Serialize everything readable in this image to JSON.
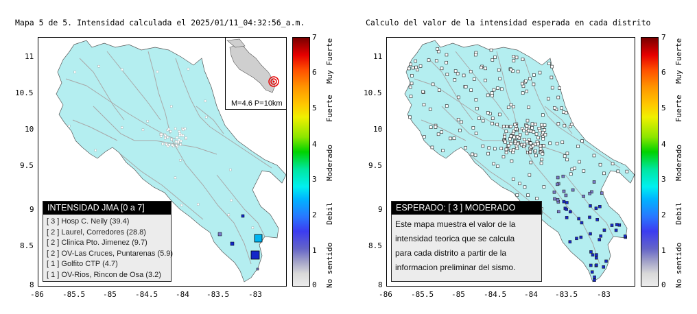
{
  "left": {
    "title": "Mapa 5 de 5. Intensidad calculada el 2025/01/11_04:32:56_a.m.",
    "x_ticks": [
      "-86",
      "-85.5",
      "-85",
      "-84.5",
      "-84",
      "-83.5",
      "-83"
    ],
    "y_ticks": [
      "11",
      "10.5",
      "10",
      "9.5",
      "9",
      "8.5",
      "8"
    ],
    "inset_caption": "M=4.6 P=10km",
    "legend_title": "INTENSIDAD JMA [0 a 7]",
    "legend_rows": [
      {
        "level": "[ 3 ]",
        "name": "Hosp C. Neily (39.4)"
      },
      {
        "level": "[ 2 ]",
        "name": "Laurel, Corredores (28.8)"
      },
      {
        "level": "[ 2 ]",
        "name": "Clinica Pto. Jimenez (9.7)"
      },
      {
        "level": "[ 2 ]",
        "name": "OV-Las Cruces, Puntarenas (5.9)"
      },
      {
        "level": "[ 1 ]",
        "name": "Golfito CTP (4.7)"
      },
      {
        "level": "[ 1 ]",
        "name": "OV-Rios, Rincon de Osa (3.2)"
      }
    ],
    "colorbar_numbers": [
      "7",
      "6",
      "5",
      "4",
      "3",
      "2",
      "1",
      "0"
    ],
    "colorbar_words": [
      "Muy Fuerte",
      "Fuerte",
      "Moderado",
      "Debil",
      "No sentido"
    ]
  },
  "right": {
    "title": "Calculo del valor de la intensidad esperada en cada distrito",
    "x_ticks": [
      "-86",
      "-85.5",
      "-85",
      "-84.5",
      "-84",
      "-83.5",
      "-83"
    ],
    "y_ticks": [
      "11",
      "10.5",
      "10",
      "9.5",
      "9",
      "8.5",
      "8"
    ],
    "box_title": "ESPERADO: [ 3 ] MODERADO",
    "box_lines": [
      "Este mapa muestra el valor de la",
      "intensidad teorica que se calcula",
      "para cada distrito a partir de la",
      "informacion preliminar del sismo."
    ],
    "colorbar_numbers": [
      "7",
      "6",
      "5",
      "4",
      "3",
      "2",
      "1",
      "0"
    ],
    "colorbar_words": [
      "Muy Fuerte",
      "Fuerte",
      "Moderado",
      "Debil",
      "No sentido"
    ]
  },
  "colors": {
    "land": "#b4eef0",
    "road": "#a8a8a8",
    "marker_3": "#00b4f0",
    "marker_2": "#1428c8",
    "marker_1": "#7878c8",
    "epicenter": "#e60000"
  }
}
